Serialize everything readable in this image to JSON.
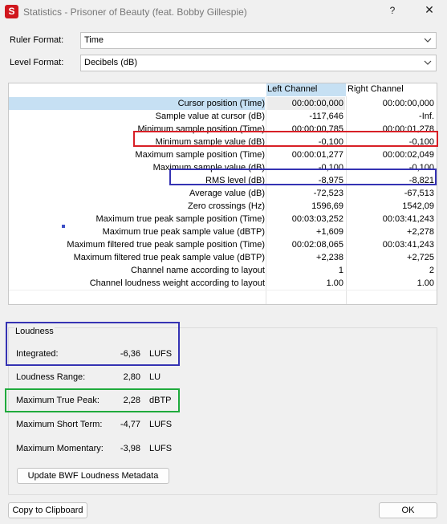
{
  "window": {
    "title": "Statistics - Prisoner of Beauty (feat. Bobby Gillespie)",
    "help_glyph": "?",
    "close_glyph": "✕",
    "app_icon_letter": "S"
  },
  "settings": {
    "ruler_label": "Ruler Format:",
    "ruler_value": "Time",
    "level_label": "Level Format:",
    "level_value": "Decibels (dB)"
  },
  "table": {
    "columns": [
      "Left Channel",
      "Right Channel"
    ],
    "rows": [
      {
        "label": "Cursor position (Time)",
        "left": "00:00:00,000",
        "right": "00:00:00,000"
      },
      {
        "label": "Sample value at cursor (dB)",
        "left": "-117,646",
        "right": "-Inf."
      },
      {
        "label": "Minimum sample position (Time)",
        "left": "00:00:00,785",
        "right": "00:00:01,278"
      },
      {
        "label": "Minimum sample value (dB)",
        "left": "-0,100",
        "right": "-0,100"
      },
      {
        "label": "Maximum sample position (Time)",
        "left": "00:00:01,277",
        "right": "00:00:02,049"
      },
      {
        "label": "Maximum sample value (dB)",
        "left": "-0,100",
        "right": "-0,100"
      },
      {
        "label": "RMS level (dB)",
        "left": "-8,975",
        "right": "-8,821"
      },
      {
        "label": "Average value (dB)",
        "left": "-72,523",
        "right": "-67,513"
      },
      {
        "label": "Zero crossings (Hz)",
        "left": "1596,69",
        "right": "1542,09"
      },
      {
        "label": "Maximum true peak sample position (Time)",
        "left": "00:03:03,252",
        "right": "00:03:41,243"
      },
      {
        "label": "Maximum true peak sample value (dBTP)",
        "left": "+1,609",
        "right": "+2,278"
      },
      {
        "label": "Maximum filtered true peak sample position (Time)",
        "left": "00:02:08,065",
        "right": "00:03:41,243"
      },
      {
        "label": "Maximum filtered true peak sample value (dBTP)",
        "left": "+2,238",
        "right": "+2,725"
      },
      {
        "label": "Channel name according to layout",
        "left": "1",
        "right": "2"
      },
      {
        "label": "Channel loudness weight according to layout",
        "left": "1.00",
        "right": "1.00"
      }
    ]
  },
  "loudness": {
    "title": "Loudness",
    "items": [
      {
        "label": "Integrated:",
        "value": "-6,36",
        "unit": "LUFS"
      },
      {
        "label": "Loudness Range:",
        "value": "2,80",
        "unit": "LU"
      },
      {
        "label": "Maximum True Peak:",
        "value": "2,28",
        "unit": "dBTP"
      },
      {
        "label": "Maximum Short Term:",
        "value": "-4,77",
        "unit": "LUFS"
      },
      {
        "label": "Maximum Momentary:",
        "value": "-3,98",
        "unit": "LUFS"
      }
    ],
    "update_button": "Update BWF Loudness Metadata"
  },
  "footer": {
    "copy_button": "Copy to Clipboard",
    "ok_button": "OK"
  },
  "colors": {
    "highlight_red": "#d81f26",
    "highlight_blue": "#3533b3",
    "highlight_green": "#1faa3c",
    "selection": "#c6e0f3"
  }
}
